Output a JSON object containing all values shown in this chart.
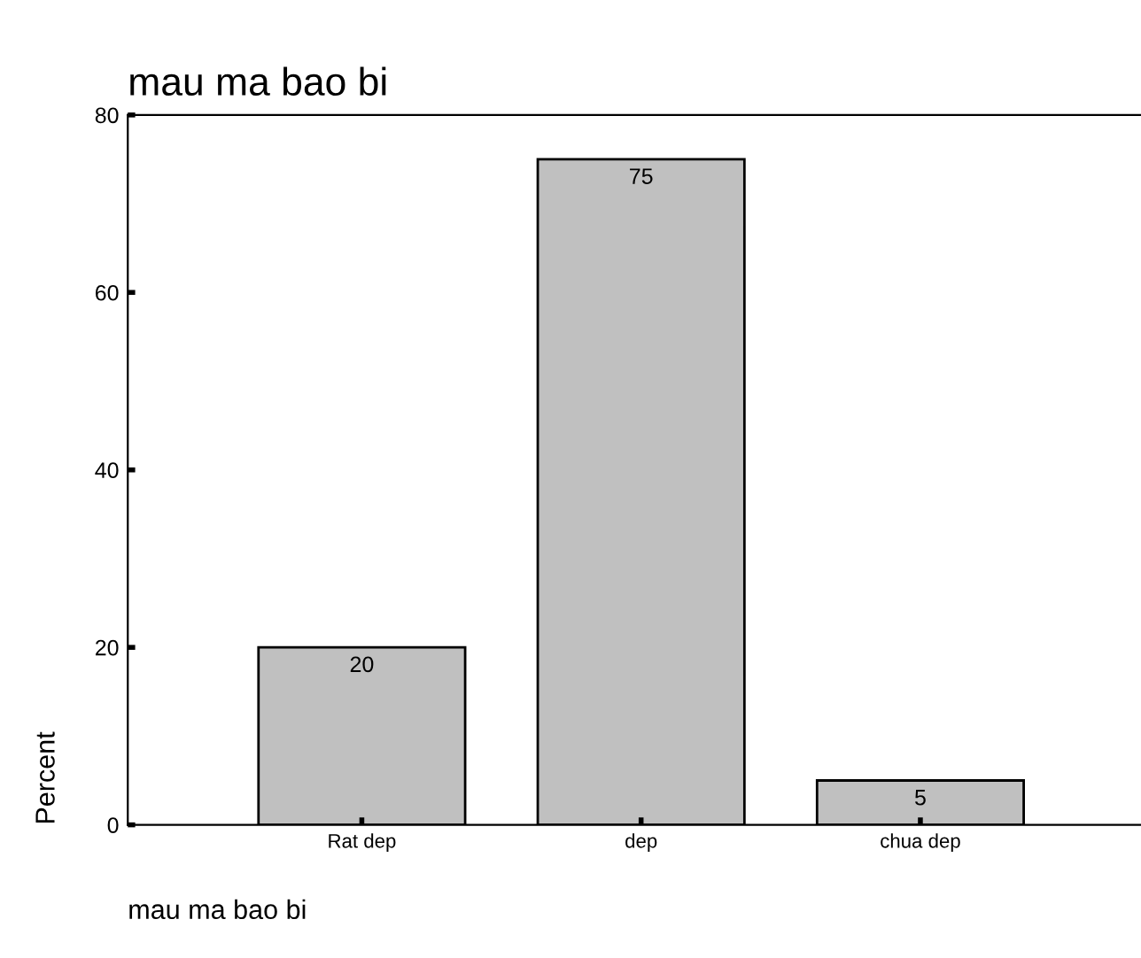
{
  "chart_data": {
    "type": "bar",
    "title": "mau ma bao bi",
    "xlabel": "mau ma bao bi",
    "ylabel": "Percent",
    "categories": [
      "Rat dep",
      "dep",
      "chua dep"
    ],
    "values": [
      20,
      75,
      5
    ],
    "color": "#c0c0c0",
    "ylim": [
      0,
      80
    ],
    "yticks": [
      0,
      20,
      40,
      60,
      80
    ],
    "grid": false,
    "data_labels": true
  }
}
